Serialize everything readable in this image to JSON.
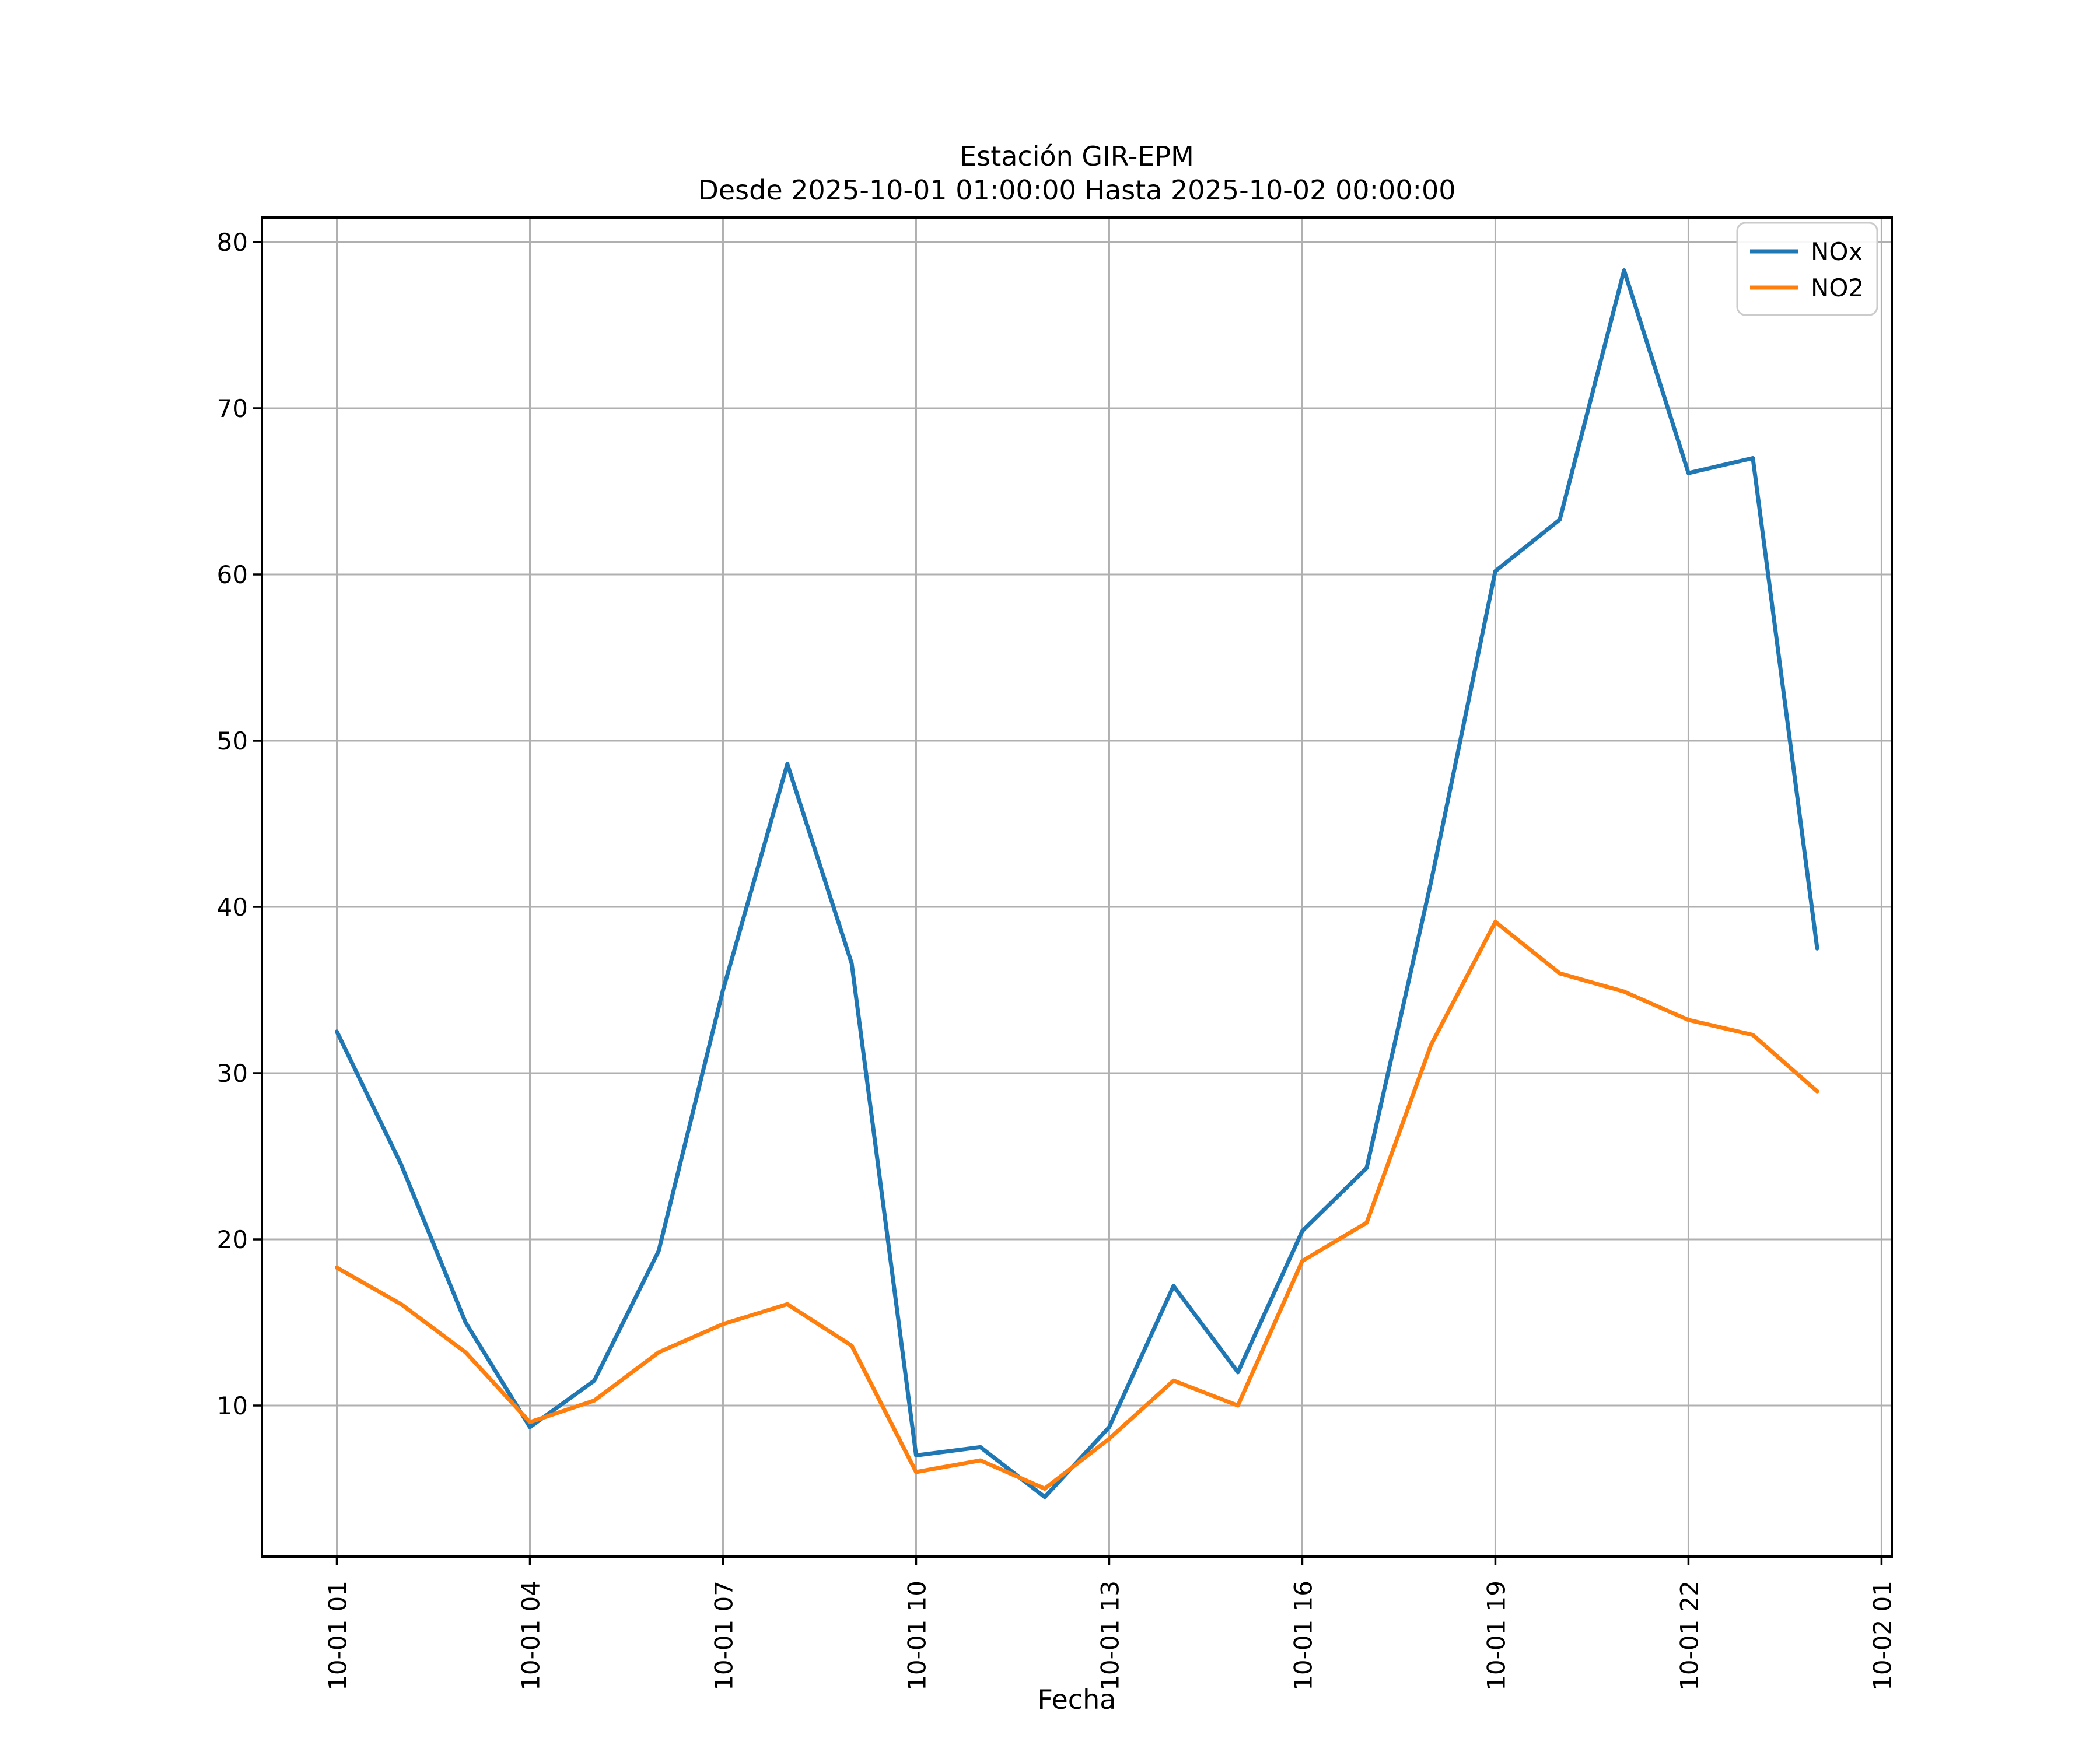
{
  "title": {
    "line1": "Estación GIR-EPM",
    "line2": "Desde 2025-10-01 01:00:00 Hasta 2025-10-02 00:00:00"
  },
  "axes": {
    "xlabel": "Fecha",
    "ytick_labels": [
      "10",
      "20",
      "30",
      "40",
      "50",
      "60",
      "70",
      "80"
    ],
    "xtick_labels": [
      "10-01 01",
      "10-01 04",
      "10-01 07",
      "10-01 10",
      "10-01 13",
      "10-01 16",
      "10-01 19",
      "10-01 22",
      "10-02 01"
    ]
  },
  "legend": {
    "items": [
      {
        "label": "NOx",
        "color": "#1f77b4"
      },
      {
        "label": "NO2",
        "color": "#ff7f0e"
      }
    ]
  },
  "colors": {
    "background": "#ffffff",
    "grid": "#b0b0b0",
    "spine": "#000000",
    "nox": "#1f77b4",
    "no2": "#ff7f0e"
  },
  "chart_data": {
    "type": "line",
    "title": "Estación GIR-EPM\nDesde 2025-10-01 01:00:00 Hasta 2025-10-02 00:00:00",
    "xlabel": "Fecha",
    "ylabel": "",
    "grid": true,
    "legend_position": "upper right",
    "ylim": [
      0.9,
      81.5
    ],
    "yticks": [
      10,
      20,
      30,
      40,
      50,
      60,
      70,
      80
    ],
    "xtick_hours": [
      1,
      4,
      7,
      10,
      13,
      16,
      19,
      22,
      25
    ],
    "xtick_labels": [
      "10-01 01",
      "10-01 04",
      "10-01 07",
      "10-01 10",
      "10-01 13",
      "10-01 16",
      "10-01 19",
      "10-01 22",
      "10-02 01"
    ],
    "x_hours": [
      1,
      2,
      3,
      4,
      5,
      6,
      7,
      8,
      9,
      10,
      11,
      12,
      13,
      14,
      15,
      16,
      17,
      18,
      19,
      20,
      21,
      22,
      23,
      24
    ],
    "series": [
      {
        "name": "NOx",
        "color": "#1f77b4",
        "values": [
          32.5,
          24.5,
          15.0,
          8.7,
          11.5,
          19.3,
          35.0,
          48.6,
          36.6,
          7.0,
          7.5,
          4.5,
          8.7,
          17.2,
          12.0,
          20.5,
          24.3,
          41.5,
          60.2,
          63.3,
          78.3,
          66.1,
          67.0,
          37.5
        ]
      },
      {
        "name": "NO2",
        "color": "#ff7f0e",
        "values": [
          18.3,
          16.1,
          13.2,
          9.0,
          10.3,
          13.2,
          14.9,
          16.1,
          13.6,
          6.0,
          6.7,
          5.0,
          8.0,
          11.5,
          10.0,
          18.7,
          21.0,
          31.7,
          39.1,
          36.0,
          34.9,
          33.2,
          32.3,
          28.9
        ]
      }
    ]
  }
}
